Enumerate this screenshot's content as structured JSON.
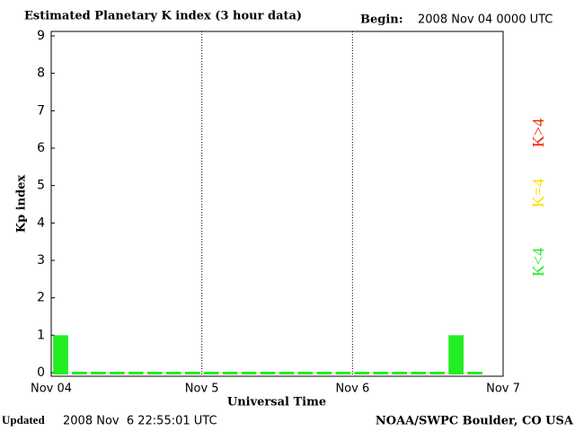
{
  "chart_data": {
    "type": "bar",
    "title": "Estimated Planetary K index (3 hour data)",
    "begin_label": "Begin:",
    "begin_value": "2008 Nov 04 0000 UTC",
    "y_label": "Kp index",
    "x_label": "Universal Time",
    "x_labels": [
      "Nov 04",
      "Nov 5",
      "Nov 6",
      "Nov 7"
    ],
    "categories": [
      null,
      null,
      null,
      null,
      null,
      null,
      null,
      null,
      null,
      null,
      null,
      null,
      null,
      null,
      null,
      null,
      null,
      null,
      null,
      null,
      null,
      null,
      null,
      null
    ],
    "values": [
      1,
      0,
      0,
      0,
      0,
      0,
      0,
      0,
      0,
      0,
      0,
      0,
      0,
      0,
      0,
      0,
      0,
      0,
      0,
      0,
      0,
      1,
      0,
      null
    ],
    "color": "#22ee22",
    "ylim": [
      0,
      9
    ],
    "yticks": [
      0,
      1,
      2,
      3,
      4,
      5,
      6,
      7,
      8,
      9
    ],
    "legend": [
      {
        "name": "K<4",
        "color": "#22ee22"
      },
      {
        "name": "K=4",
        "color": "#ffdd00"
      },
      {
        "name": "K>4",
        "color": "#ee2200"
      }
    ],
    "footer": {
      "updated_label": "Updated",
      "updated_value": "2008 Nov  6 22:55:01 UTC",
      "source": "NOAA/SWPC Boulder, CO USA"
    }
  }
}
